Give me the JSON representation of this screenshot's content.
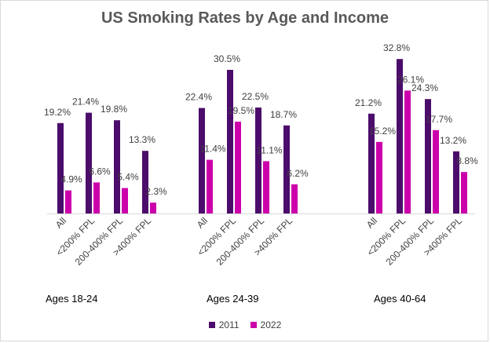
{
  "chart_data": {
    "type": "bar",
    "title": "US Smoking Rates by Age and Income",
    "ylim": [
      0,
      35
    ],
    "grid": false,
    "legend_position": "bottom",
    "series": [
      {
        "name": "2011",
        "color": "#4b0c6b"
      },
      {
        "name": "2022",
        "color": "#cc00aa"
      }
    ],
    "groups": [
      {
        "label": "Ages 18-24",
        "categories": [
          "All",
          "<200% FPL",
          "200-400% FPL",
          ">400% FPL"
        ],
        "values_2011": [
          19.2,
          21.4,
          19.8,
          13.3
        ],
        "values_2022": [
          4.9,
          6.6,
          5.4,
          2.3
        ],
        "labels_2011": [
          "19.2%",
          "21.4%",
          "19.8%",
          "13.3%"
        ],
        "labels_2022": [
          "4.9%",
          "6.6%",
          "5.4%",
          "2.3%"
        ]
      },
      {
        "label": "Ages 24-39",
        "categories": [
          "All",
          "<200% FPL",
          "200-400% FPL",
          ">400% FPL"
        ],
        "values_2011": [
          22.4,
          30.5,
          22.5,
          18.7
        ],
        "values_2022": [
          11.4,
          19.5,
          11.1,
          6.2
        ],
        "labels_2011": [
          "22.4%",
          "30.5%",
          "22.5%",
          "18.7%"
        ],
        "labels_2022": [
          "11.4%",
          "19.5%",
          "11.1%",
          "6.2%"
        ]
      },
      {
        "label": "Ages 40-64",
        "categories": [
          "All",
          "<200% FPL",
          "200-400% FPL",
          ">400% FPL"
        ],
        "values_2011": [
          21.2,
          32.8,
          24.3,
          13.2
        ],
        "values_2022": [
          15.2,
          26.1,
          17.7,
          8.8
        ],
        "labels_2011": [
          "21.2%",
          "32.8%",
          "24.3%",
          "13.2%"
        ],
        "labels_2022": [
          "15.2%",
          "26.1%",
          "17.7%",
          "8.8%"
        ]
      }
    ]
  }
}
